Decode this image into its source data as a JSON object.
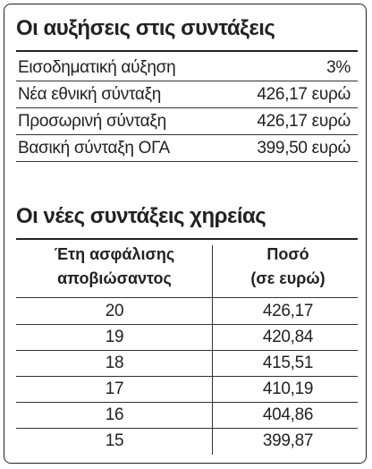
{
  "section1": {
    "title": "Οι αυξήσεις στις συντάξεις",
    "rows": [
      [
        "Εισοδηματική αύξηση",
        "3%"
      ],
      [
        "Νέα εθνική σύνταξη",
        "426,17 ευρώ"
      ],
      [
        "Προσωρινή σύνταξη",
        "426,17 ευρώ"
      ],
      [
        "Βασική σύνταξη ΟΓΑ",
        "399,50 ευρώ"
      ]
    ]
  },
  "section2": {
    "title": "Οι νέες συντάξεις χηρείας",
    "header": [
      [
        "Έτη ασφάλισης",
        "αποβιώσαντος"
      ],
      [
        "Ποσό",
        "(σε ευρώ)"
      ]
    ],
    "rows": [
      [
        "20",
        "426,17"
      ],
      [
        "19",
        "420,84"
      ],
      [
        "18",
        "415,51"
      ],
      [
        "17",
        "410,19"
      ],
      [
        "16",
        "404,86"
      ],
      [
        "15",
        "399,87"
      ]
    ]
  }
}
